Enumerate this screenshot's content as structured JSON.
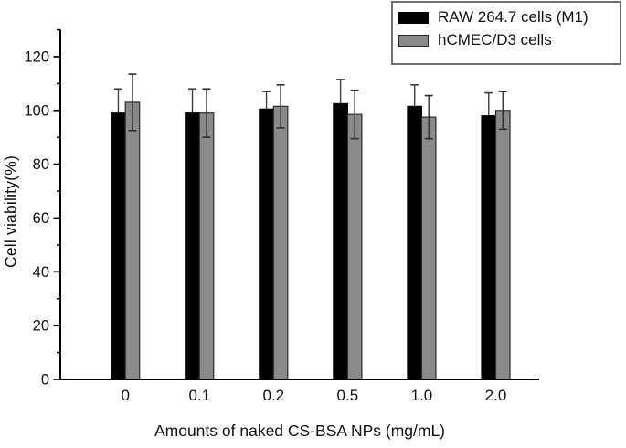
{
  "chart_data": {
    "type": "bar",
    "title": "",
    "categories": [
      "0",
      "0.1",
      "0.2",
      "0.5",
      "1.0",
      "2.0"
    ],
    "series": [
      {
        "name": "RAW 264.7 cells (M1)",
        "color": "#000000",
        "edge_color": "#000000",
        "values": [
          99,
          99,
          100.5,
          102.5,
          101.5,
          98
        ],
        "errors": [
          9,
          9,
          6.5,
          9,
          8,
          8.5
        ]
      },
      {
        "name": "hCMEC/D3 cells",
        "color": "#8a8a8a",
        "edge_color": "#2b2b2b",
        "values": [
          103,
          99,
          101.5,
          98.5,
          97.5,
          100
        ],
        "errors": [
          10.5,
          9,
          8,
          9,
          8,
          7
        ]
      }
    ],
    "xlabel": "Amounts of naked CS-BSA NPs (mg/mL)",
    "ylabel": "Cell viability(%)",
    "ylim": [
      0,
      130
    ],
    "yticks_major": [
      0,
      20,
      40,
      60,
      80,
      100,
      120
    ],
    "ytick_minor_step": 10,
    "grid": false,
    "legend_position": "top-right",
    "axis_color": "#000000"
  }
}
